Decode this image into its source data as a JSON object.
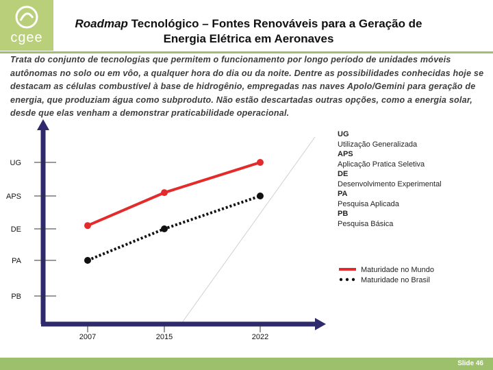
{
  "header": {
    "logo_text": "cgee",
    "title_italic": "Roadmap",
    "title_rest": " Tecnológico – Fontes Renováveis para a Geração de",
    "title_line2": "Energia Elétrica em Aeronaves"
  },
  "intro_text": "Trata do conjunto de tecnologias que permitem o funcionamento por longo período de unidades móveis autônomas no solo ou em vôo, a qualquer hora do dia ou da noite. Dentre as possibilidades conhecidas hoje se destacam as células combustível à base de hidrogênio, empregadas nas naves Apolo/Gemini para geração de energia, que produziam água como subproduto. Não estão descartadas outras opções, como a energia solar, desde que elas venham a demonstrar praticabilidade operacional.",
  "key": [
    {
      "abbr": "UG",
      "desc": "Utilização Generalizada"
    },
    {
      "abbr": "APS",
      "desc": "Aplicação Pratica Seletiva"
    },
    {
      "abbr": "DE",
      "desc": "Desenvolvimento Experimental"
    },
    {
      "abbr": "PA",
      "desc": "Pesquisa Aplicada"
    },
    {
      "abbr": "PB",
      "desc": "Pesquisa Básica"
    }
  ],
  "chart_data": {
    "type": "line",
    "levels": [
      "PB",
      "PA",
      "DE",
      "APS",
      "UG"
    ],
    "x": [
      2007,
      2015,
      2022
    ],
    "x_tick_labels": [
      "2007",
      "2015",
      "2022"
    ],
    "series": [
      {
        "name": "Maturidade no Mundo",
        "color": "#e32b2b",
        "style": "solid",
        "values": [
          2.1,
          3.1,
          4.0
        ]
      },
      {
        "name": "Maturidade no Brasil",
        "color": "#111111",
        "style": "dotted",
        "values": [
          1.0,
          2.0,
          3.0
        ]
      }
    ],
    "legend_position": "bottom-right",
    "grid": false
  },
  "footer": {
    "slide_label": "Slide 46"
  }
}
